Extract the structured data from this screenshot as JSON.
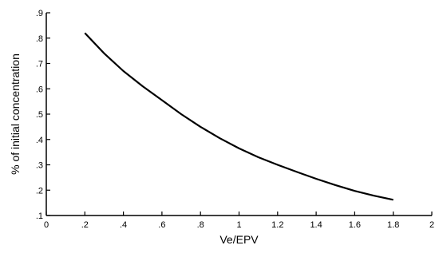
{
  "chart_data": {
    "type": "line",
    "title": "",
    "xlabel": "Ve/EPV",
    "ylabel": "% of initial concentration",
    "xlim": [
      0,
      2
    ],
    "ylim": [
      0.1,
      0.9
    ],
    "x_ticks": [
      {
        "value": 0,
        "label": "0"
      },
      {
        "value": 0.2,
        "label": ".2"
      },
      {
        "value": 0.4,
        "label": ".4"
      },
      {
        "value": 0.6,
        "label": ".6"
      },
      {
        "value": 0.8,
        "label": ".8"
      },
      {
        "value": 1.0,
        "label": "1"
      },
      {
        "value": 1.2,
        "label": "1.2"
      },
      {
        "value": 1.4,
        "label": "1.4"
      },
      {
        "value": 1.6,
        "label": "1.6"
      },
      {
        "value": 1.8,
        "label": "1.8"
      },
      {
        "value": 2.0,
        "label": "2"
      }
    ],
    "y_ticks": [
      {
        "value": 0.1,
        "label": ".1"
      },
      {
        "value": 0.2,
        "label": ".2"
      },
      {
        "value": 0.3,
        "label": ".3"
      },
      {
        "value": 0.4,
        "label": ".4"
      },
      {
        "value": 0.5,
        "label": ".5"
      },
      {
        "value": 0.6,
        "label": ".6"
      },
      {
        "value": 0.7,
        "label": ".7"
      },
      {
        "value": 0.8,
        "label": ".8"
      },
      {
        "value": 0.9,
        "label": ".9"
      }
    ],
    "grid": false,
    "series": [
      {
        "color": "#000000",
        "x": [
          0.2,
          0.3,
          0.4,
          0.5,
          0.6,
          0.7,
          0.8,
          0.9,
          1.0,
          1.1,
          1.2,
          1.3,
          1.4,
          1.5,
          1.6,
          1.7,
          1.8
        ],
        "y": [
          0.82,
          0.74,
          0.67,
          0.61,
          0.555,
          0.5,
          0.45,
          0.405,
          0.365,
          0.33,
          0.3,
          0.272,
          0.245,
          0.22,
          0.197,
          0.178,
          0.162
        ]
      }
    ]
  }
}
